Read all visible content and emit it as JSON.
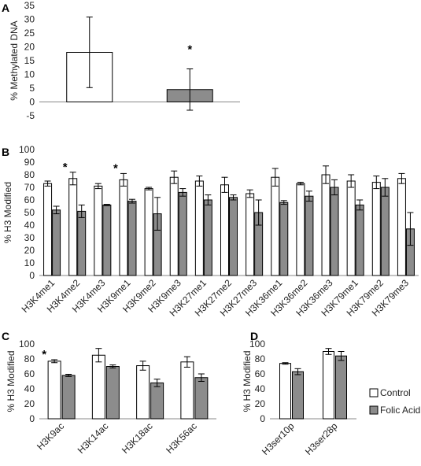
{
  "legend": {
    "control": "Control",
    "folic": "Folic Acid",
    "control_color": "#ffffff",
    "folic_color": "#8c8c8c"
  },
  "chart_data": [
    {
      "panel": "A",
      "type": "bar",
      "ylabel": "% Methylated DNA",
      "ylim": [
        -5,
        35
      ],
      "yticks": [
        "-5",
        "0",
        "5",
        "10",
        "15",
        "20",
        "25",
        "30",
        "35"
      ],
      "categories": [
        "",
        ""
      ],
      "series": [
        {
          "name": "Control",
          "values": [
            18,
            null
          ],
          "errors": [
            12.8,
            null
          ]
        },
        {
          "name": "Folic Acid",
          "values": [
            null,
            4.5
          ],
          "errors": [
            null,
            7.5
          ]
        }
      ],
      "significant": [
        false,
        true
      ],
      "star": "*"
    },
    {
      "panel": "B",
      "type": "bar",
      "ylabel": "% H3 Modified",
      "ylim": [
        0,
        100
      ],
      "yticks": [
        "0",
        "10",
        "20",
        "30",
        "40",
        "50",
        "60",
        "70",
        "80",
        "90",
        "100"
      ],
      "categories": [
        "H3K4me1",
        "H3K4me2",
        "H3K4me3",
        "H3K9me1",
        "H3K9me2",
        "H3K9me3",
        "H3K27me1",
        "H3K27me2",
        "H3K27me3",
        "H3K36me1",
        "H3K36me2",
        "H3K36me3",
        "H3K79me1",
        "H3K79me2",
        "H3K79me3"
      ],
      "series": [
        {
          "name": "Control",
          "values": [
            73,
            77,
            71,
            76,
            69,
            78,
            75,
            72,
            65,
            78,
            73,
            80,
            75,
            74,
            77
          ],
          "errors": [
            2,
            5,
            2,
            5,
            1,
            5,
            4,
            6,
            3,
            7,
            1,
            7,
            5,
            5,
            4
          ]
        },
        {
          "name": "Folic Acid",
          "values": [
            52,
            51,
            56,
            59,
            49,
            66,
            60,
            62,
            50,
            58,
            63,
            70,
            56,
            70,
            37
          ],
          "errors": [
            3,
            5,
            0.5,
            1.5,
            13,
            3,
            4,
            2,
            10,
            1.5,
            4,
            6,
            4,
            7,
            13
          ]
        }
      ],
      "significant": [
        false,
        true,
        false,
        true,
        false,
        false,
        false,
        false,
        false,
        false,
        false,
        false,
        false,
        false,
        false
      ],
      "star": "*"
    },
    {
      "panel": "C",
      "type": "bar",
      "ylabel": "% H3 Modified",
      "ylim": [
        0,
        100
      ],
      "yticks": [
        "0",
        "20",
        "40",
        "60",
        "80",
        "100"
      ],
      "categories": [
        "H3K9ac",
        "H3K14ac",
        "H3K18ac",
        "H3K56ac"
      ],
      "series": [
        {
          "name": "Control",
          "values": [
            77,
            85,
            71,
            76
          ],
          "errors": [
            2,
            9,
            6,
            7
          ]
        },
        {
          "name": "Folic Acid",
          "values": [
            58,
            70,
            48,
            55
          ],
          "errors": [
            1.5,
            2,
            5,
            5
          ]
        }
      ],
      "significant": [
        true,
        false,
        false,
        false
      ],
      "star": "*"
    },
    {
      "panel": "D",
      "type": "bar",
      "ylabel": "% H3 Modified",
      "ylim": [
        0,
        100
      ],
      "yticks": [
        "0",
        "20",
        "40",
        "60",
        "80",
        "100"
      ],
      "categories": [
        "H3ser10p",
        "H3ser28p"
      ],
      "series": [
        {
          "name": "Control",
          "values": [
            74,
            90
          ],
          "errors": [
            1,
            4
          ]
        },
        {
          "name": "Folic Acid",
          "values": [
            63,
            84
          ],
          "errors": [
            4,
            6
          ]
        }
      ],
      "significant": [
        false,
        false
      ],
      "star": "*"
    }
  ]
}
